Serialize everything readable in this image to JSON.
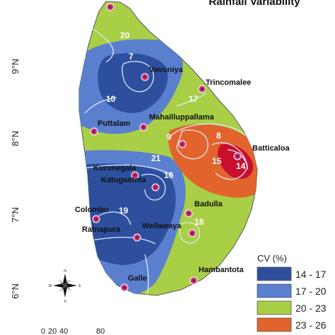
{
  "map": {
    "title": "Rainfall Variability",
    "latitudes": [
      "9°N",
      "8°N",
      "7°N",
      "6°N"
    ],
    "contour_labels": [
      "20",
      "7",
      "10",
      "17",
      "9",
      "8",
      "15",
      "14",
      "21",
      "16",
      "19",
      "18"
    ],
    "cities": [
      {
        "name": "Vavuniya"
      },
      {
        "name": "Trincomalee"
      },
      {
        "name": "Mahailluppallama"
      },
      {
        "name": "Puttalam"
      },
      {
        "name": "Batticaloa"
      },
      {
        "name": "Kurunegala"
      },
      {
        "name": "Katugastota"
      },
      {
        "name": "Colombo"
      },
      {
        "name": "Badulla"
      },
      {
        "name": "Ratnapura"
      },
      {
        "name": "Wellawaya"
      },
      {
        "name": "Hambantota"
      },
      {
        "name": "Galle"
      }
    ],
    "legend": {
      "title": "CV (%)",
      "items": [
        {
          "label": "14 - 17",
          "color": "#2d4f9e"
        },
        {
          "label": "17 - 20",
          "color": "#5a7fcf"
        },
        {
          "label": "20 - 23",
          "color": "#a9cf46"
        },
        {
          "label": "23 - 26",
          "color": "#e2642c"
        }
      ]
    },
    "compass": {
      "n": "N",
      "s": "S",
      "e": "E",
      "w": "W"
    },
    "scale": {
      "labels": [
        "0",
        "20",
        "40",
        "80"
      ]
    },
    "colors": {
      "dark_blue": "#2d4f9e",
      "light_blue": "#5a7fcf",
      "green": "#a9cf46",
      "orange": "#e2642c",
      "red": "#c8102e",
      "station": "#c8347a"
    }
  }
}
